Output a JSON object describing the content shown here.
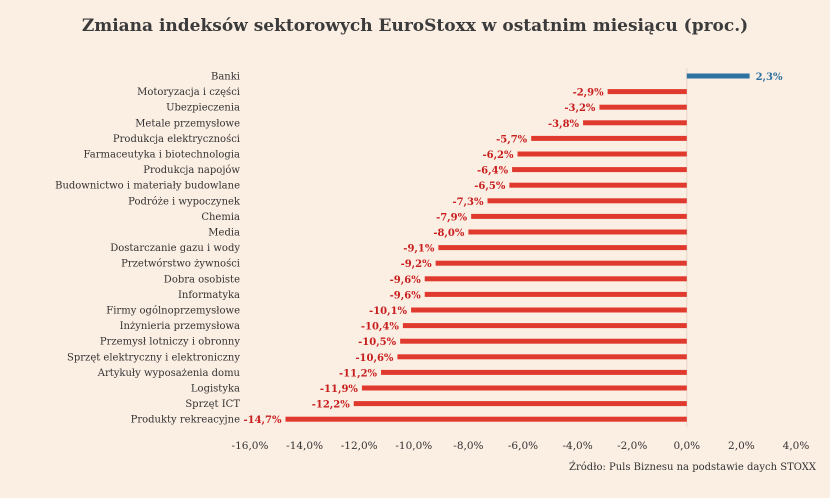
{
  "chart_data": {
    "type": "bar",
    "orientation": "horizontal",
    "title": "Zmiana indeksów sektorowych EuroStoxx w ostatnim miesiącu (proc.)",
    "source": "Źródło: Puls Biznesu na podstawie daych STOXX",
    "categories": [
      "Banki",
      "Motoryzacja i części",
      "Ubezpieczenia",
      "Metale przemysłowe",
      "Produkcja elektryczności",
      "Farmaceutyka i biotechnologia",
      "Produkcja napojów",
      "Budownictwo i materiały budowlane",
      "Podróże i wypoczynek",
      "Chemia",
      "Media",
      "Dostarczanie gazu i wody",
      "Przetwórstwo żywności",
      "Dobra osobiste",
      "Informatyka",
      "Firmy ogólnoprzemysłowe",
      "Inżynieria przemysłowa",
      "Przemysł lotniczy i obronny",
      "Sprzęt elektryczny i elektroniczny",
      "Artykuły wyposażenia domu",
      "Logistyka",
      "Sprzęt ICT",
      "Produkty rekreacyjne"
    ],
    "values": [
      2.3,
      -2.9,
      -3.2,
      -3.8,
      -5.7,
      -6.2,
      -6.4,
      -6.5,
      -7.3,
      -7.9,
      -8.0,
      -9.1,
      -9.2,
      -9.6,
      -9.6,
      -10.1,
      -10.4,
      -10.5,
      -10.6,
      -11.2,
      -11.9,
      -12.2,
      -14.7
    ],
    "value_labels": [
      "2,3%",
      "-2,9%",
      "-3,2%",
      "-3,8%",
      "-5,7%",
      "-6,2%",
      "-6,4%",
      "-6,5%",
      "-7,3%",
      "-7,9%",
      "-8,0%",
      "-9,1%",
      "-9,2%",
      "-9,6%",
      "-9,6%",
      "-10,1%",
      "-10,4%",
      "-10,5%",
      "-10,6%",
      "-11,2%",
      "-11,9%",
      "-12,2%",
      "-14,7%"
    ],
    "xlim": [
      -16,
      4
    ],
    "x_ticks": [
      -16,
      -14,
      -12,
      -10,
      -8,
      -6,
      -4,
      -2,
      0,
      2,
      4
    ],
    "x_tick_labels": [
      "-16,0%",
      "-14,0%",
      "-12,0%",
      "-10,0%",
      "-8,0%",
      "-6,0%",
      "-4,0%",
      "-2,0%",
      "0,0%",
      "2,0%",
      "4,0%"
    ],
    "grid": false,
    "colors": {
      "negative": "#e03a2f",
      "positive": "#2e72a0",
      "negative_label": "#c81e1e",
      "positive_label": "#2e72a0",
      "background": "#fbeee3"
    }
  }
}
